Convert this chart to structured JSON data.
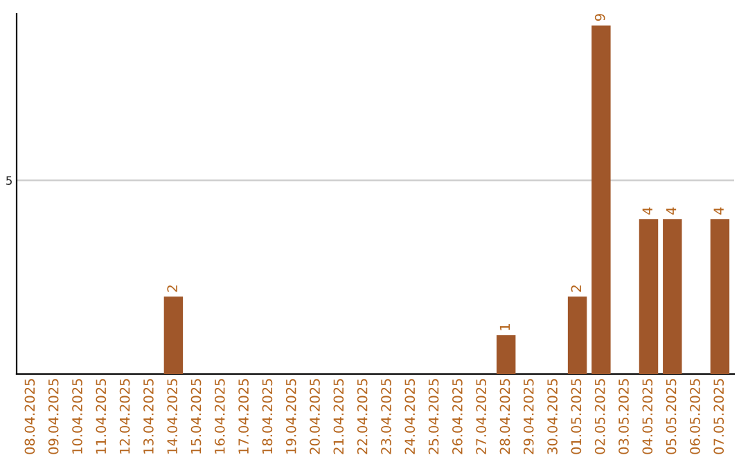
{
  "chart_data": {
    "type": "bar",
    "categories": [
      "08.04.2025",
      "09.04.2025",
      "10.04.2025",
      "11.04.2025",
      "12.04.2025",
      "13.04.2025",
      "14.04.2025",
      "15.04.2025",
      "16.04.2025",
      "17.04.2025",
      "18.04.2025",
      "19.04.2025",
      "20.04.2025",
      "21.04.2025",
      "22.04.2025",
      "23.04.2025",
      "24.04.2025",
      "25.04.2025",
      "26.04.2025",
      "27.04.2025",
      "28.04.2025",
      "29.04.2025",
      "30.04.2025",
      "01.05.2025",
      "02.05.2025",
      "03.05.2025",
      "04.05.2025",
      "05.05.2025",
      "06.05.2025",
      "07.05.2025"
    ],
    "values": [
      0,
      0,
      0,
      0,
      0,
      0,
      2,
      0,
      0,
      0,
      0,
      0,
      0,
      0,
      0,
      0,
      0,
      0,
      0,
      0,
      1,
      0,
      0,
      2,
      9,
      0,
      4,
      4,
      0,
      4
    ],
    "value_labels": [
      null,
      null,
      null,
      null,
      null,
      null,
      "2",
      null,
      null,
      null,
      null,
      null,
      null,
      null,
      null,
      null,
      null,
      null,
      null,
      null,
      "1",
      null,
      null,
      "2",
      "9",
      null,
      "4",
      "4",
      null,
      "4"
    ],
    "color": "#a0572a",
    "ylim": [
      0,
      9.3
    ],
    "yticks": [
      5
    ],
    "grid": "y",
    "legend": false
  }
}
